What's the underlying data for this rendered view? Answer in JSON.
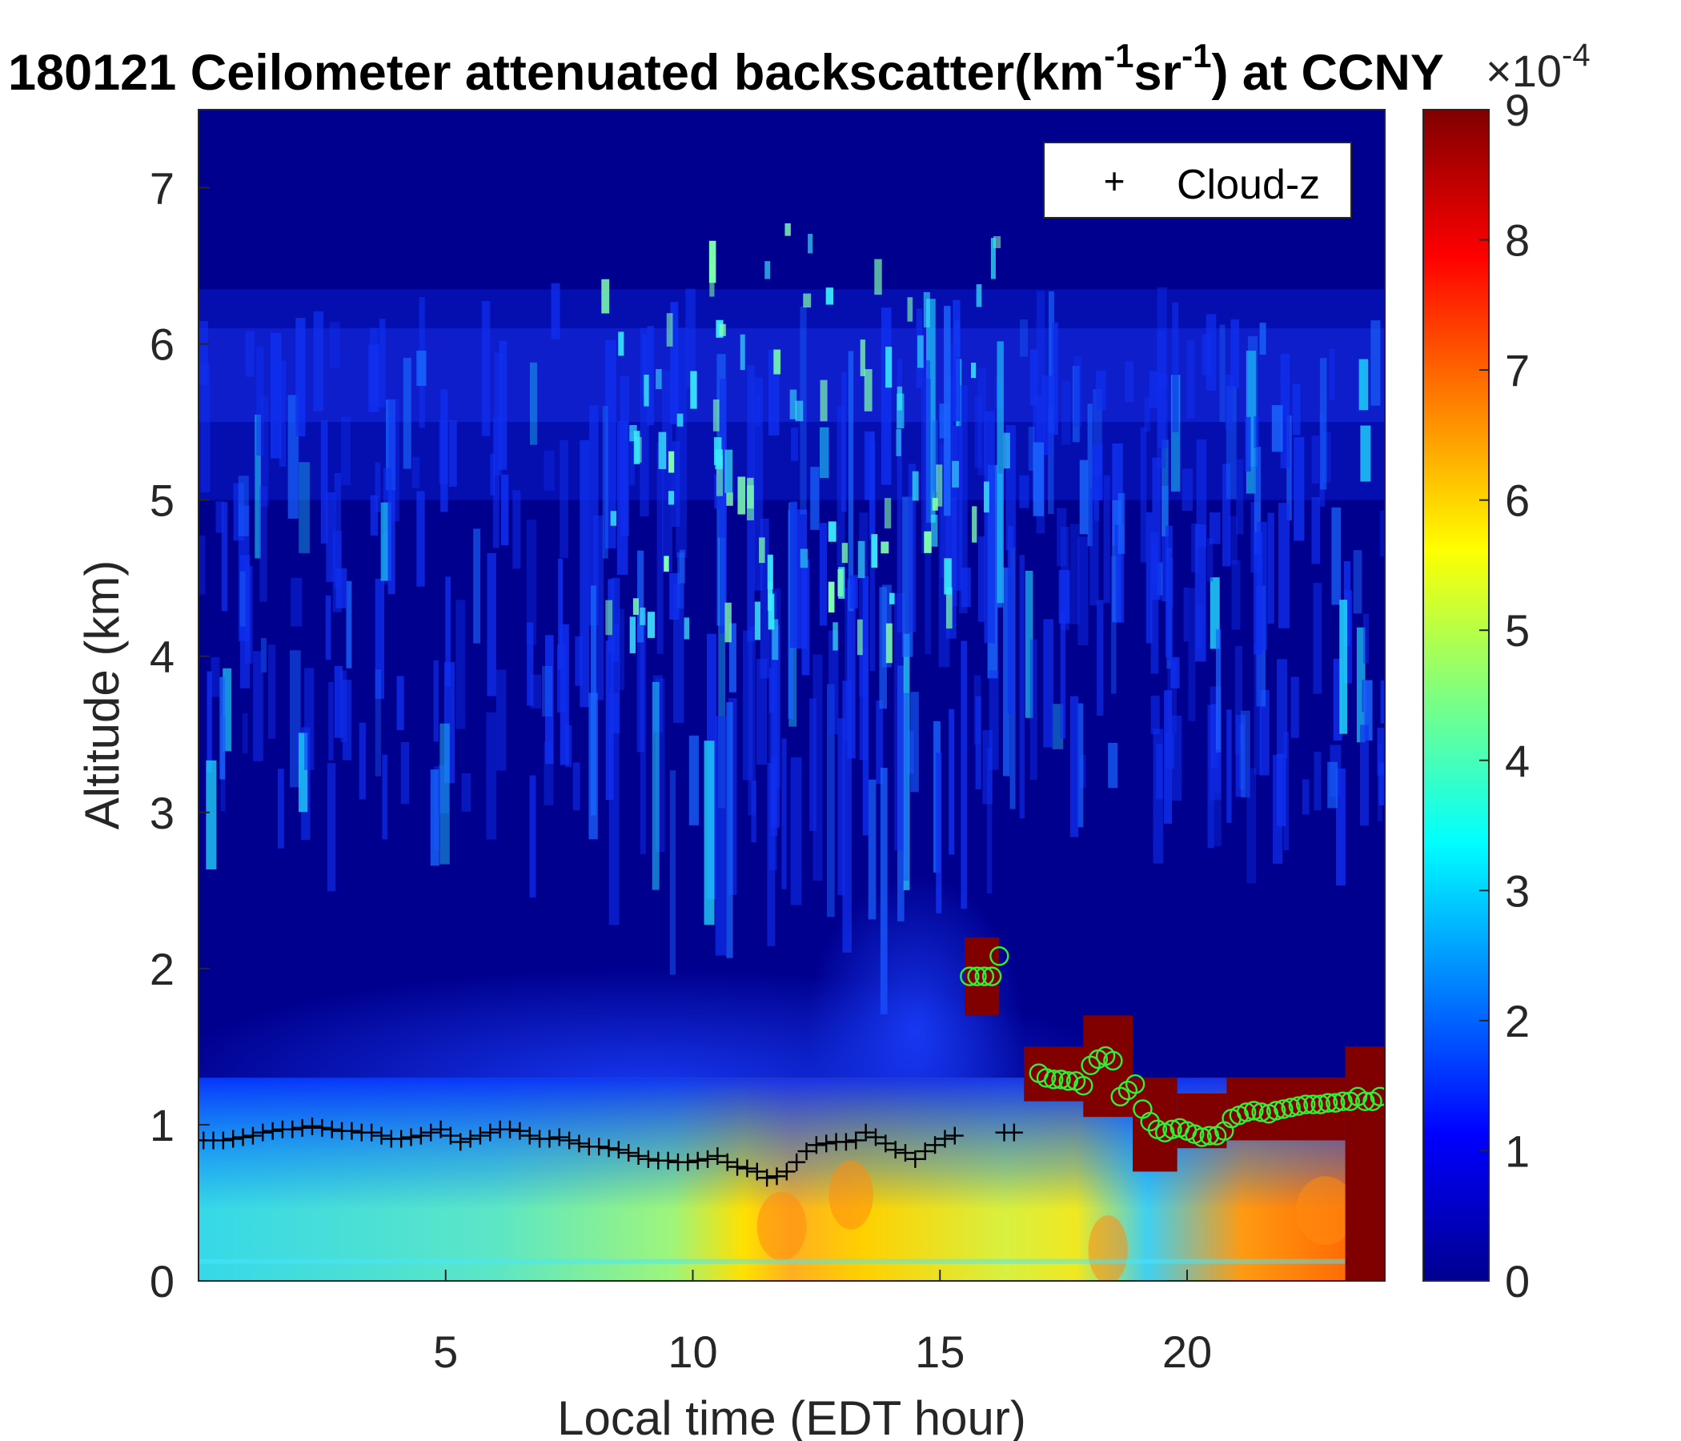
{
  "chart_data": {
    "type": "heatmap",
    "title": {
      "prefix": "180121 Ceilometer attenuated backscatter(km",
      "sup1": "-1",
      "mid": "sr",
      "sup2": "-1",
      "suffix": ") at CCNY"
    },
    "xlabel": "Local time (EDT hour)",
    "ylabel": "Altitude (km)",
    "xlim": [
      0,
      24
    ],
    "ylim": [
      0,
      7.5
    ],
    "xticks": [
      5,
      10,
      15,
      20
    ],
    "yticks": [
      0,
      1,
      2,
      3,
      4,
      5,
      6,
      7
    ],
    "colorbar": {
      "colormap": "jet",
      "clim": [
        0,
        9
      ],
      "ticks": [
        0,
        1,
        2,
        3,
        4,
        5,
        6,
        7,
        8,
        9
      ],
      "exponent_base": "×10",
      "exponent": "-4"
    },
    "legend": {
      "location": "top-right",
      "entries": [
        {
          "marker": "+",
          "label": "Cloud-z"
        }
      ]
    },
    "colors": {
      "cloud_z_marker": "#000000",
      "cloud_circle_marker": "#33ee33",
      "colormap_low": "#00008f",
      "colormap_high": "#800000"
    },
    "series": [
      {
        "name": "Cloud-z",
        "marker": "+",
        "x": [
          0.1,
          0.3,
          0.5,
          0.7,
          0.9,
          1.1,
          1.3,
          1.5,
          1.7,
          1.9,
          2.1,
          2.3,
          2.5,
          2.7,
          2.9,
          3.1,
          3.3,
          3.5,
          3.7,
          3.9,
          4.1,
          4.3,
          4.5,
          4.7,
          4.9,
          5.1,
          5.3,
          5.5,
          5.7,
          5.9,
          6.1,
          6.3,
          6.5,
          6.7,
          6.9,
          7.1,
          7.3,
          7.5,
          7.7,
          7.9,
          8.1,
          8.3,
          8.5,
          8.7,
          8.9,
          9.1,
          9.3,
          9.5,
          9.7,
          9.9,
          10.1,
          10.3,
          10.5,
          10.7,
          10.9,
          11.1,
          11.3,
          11.5,
          11.7,
          11.9,
          12.1,
          12.3,
          12.5,
          12.7,
          12.9,
          13.1,
          13.3,
          13.5,
          13.7,
          13.9,
          14.1,
          14.3,
          14.5,
          14.7,
          14.9,
          15.1,
          15.3,
          16.3,
          16.5
        ],
        "y": [
          0.9,
          0.9,
          0.9,
          0.91,
          0.92,
          0.93,
          0.95,
          0.96,
          0.97,
          0.97,
          0.98,
          0.99,
          0.98,
          0.97,
          0.96,
          0.96,
          0.95,
          0.95,
          0.93,
          0.91,
          0.91,
          0.92,
          0.93,
          0.95,
          0.97,
          0.93,
          0.89,
          0.91,
          0.93,
          0.95,
          0.97,
          0.97,
          0.96,
          0.93,
          0.91,
          0.91,
          0.92,
          0.9,
          0.88,
          0.86,
          0.86,
          0.85,
          0.84,
          0.82,
          0.8,
          0.78,
          0.77,
          0.77,
          0.76,
          0.76,
          0.77,
          0.78,
          0.8,
          0.76,
          0.73,
          0.72,
          0.7,
          0.66,
          0.67,
          0.7,
          0.76,
          0.83,
          0.87,
          0.88,
          0.89,
          0.89,
          0.9,
          0.95,
          0.92,
          0.88,
          0.84,
          0.82,
          0.78,
          0.83,
          0.87,
          0.91,
          0.93,
          0.95,
          0.95
        ]
      },
      {
        "marker": "o",
        "x": [
          15.6,
          15.75,
          15.9,
          16.05,
          16.2,
          17.0,
          17.15,
          17.3,
          17.45,
          17.6,
          17.75,
          17.9,
          18.05,
          18.2,
          18.35,
          18.5,
          18.65,
          18.8,
          18.95,
          19.1,
          19.25,
          19.4,
          19.55,
          19.7,
          19.85,
          20.0,
          20.15,
          20.3,
          20.45,
          20.6,
          20.75,
          20.9,
          21.05,
          21.2,
          21.35,
          21.5,
          21.65,
          21.8,
          21.95,
          22.1,
          22.25,
          22.4,
          22.55,
          22.7,
          22.85,
          23.0,
          23.15,
          23.3,
          23.45,
          23.6,
          23.75,
          23.9
        ],
        "y": [
          1.95,
          1.95,
          1.95,
          1.95,
          2.08,
          1.33,
          1.3,
          1.29,
          1.29,
          1.28,
          1.28,
          1.25,
          1.38,
          1.42,
          1.44,
          1.41,
          1.18,
          1.22,
          1.26,
          1.1,
          1.02,
          0.97,
          0.95,
          0.97,
          0.98,
          0.96,
          0.94,
          0.92,
          0.93,
          0.93,
          0.96,
          1.04,
          1.06,
          1.08,
          1.09,
          1.08,
          1.07,
          1.09,
          1.1,
          1.11,
          1.12,
          1.13,
          1.13,
          1.13,
          1.14,
          1.14,
          1.15,
          1.15,
          1.18,
          1.15,
          1.15,
          1.18
        ]
      }
    ],
    "regions": {
      "surface_layer": {
        "x": [
          0,
          24
        ],
        "y": [
          0,
          1.3
        ]
      },
      "strong_cloud_segments": [
        {
          "x": [
            15.5,
            16.2
          ],
          "y_bottom": 1.7,
          "y_top": 2.2
        },
        {
          "x": [
            16.7,
            17.9
          ],
          "y_bottom": 1.15,
          "y_top": 1.5
        },
        {
          "x": [
            17.9,
            18.9
          ],
          "y_bottom": 1.05,
          "y_top": 1.7
        },
        {
          "x": [
            18.9,
            19.8
          ],
          "y_bottom": 0.7,
          "y_top": 1.3
        },
        {
          "x": [
            19.8,
            20.8
          ],
          "y_bottom": 0.85,
          "y_top": 1.2
        },
        {
          "x": [
            20.8,
            23.2
          ],
          "y_bottom": 0.9,
          "y_top": 1.3
        },
        {
          "x": [
            23.2,
            24.0
          ],
          "y_bottom": 0.0,
          "y_top": 1.5
        }
      ]
    }
  }
}
